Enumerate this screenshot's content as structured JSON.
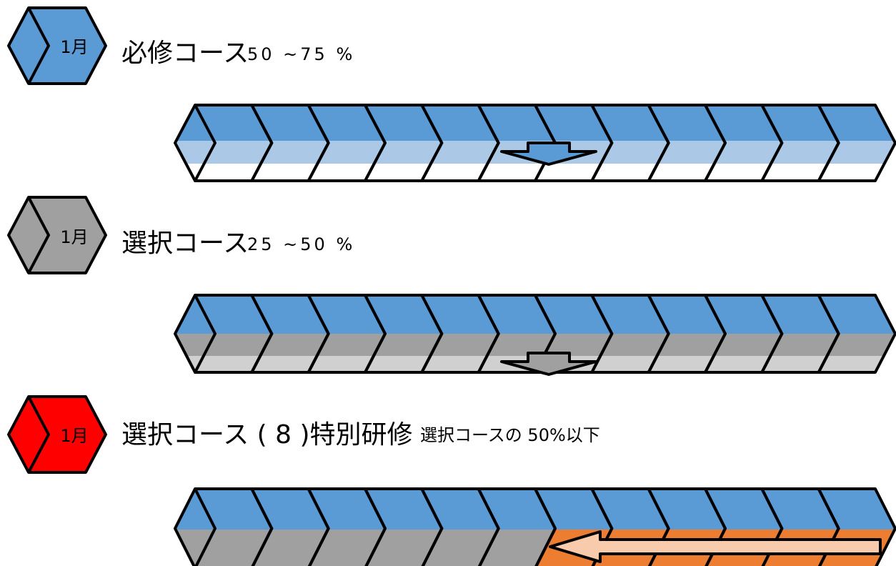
{
  "colors": {
    "blue": "#5b9bd5",
    "light_blue": "#abc9e7",
    "gray": "#a0a0a0",
    "light_gray": "#d0d0d0",
    "red": "#ff0000",
    "orange": "#ed7d31",
    "light_orange": "#f8cbad",
    "outline": "#000000",
    "white": "#ffffff"
  },
  "sections": [
    {
      "id": "required",
      "icon_color": "#5b9bd5",
      "month_label": "1月",
      "title": "必修コース",
      "percent": "50 ~75 %",
      "note": "",
      "bar": {
        "top": "blue",
        "middle": "light_blue",
        "bottom": "white",
        "highlight": "none"
      },
      "arrow": "down-blue"
    },
    {
      "id": "elective",
      "icon_color": "#a0a0a0",
      "month_label": "1月",
      "title": "選択コース",
      "percent": "25 ~50 %",
      "note": "",
      "bar": {
        "top": "blue",
        "middle": "gray",
        "bottom": "light_gray",
        "highlight": "none"
      },
      "arrow": "down-gray"
    },
    {
      "id": "special",
      "icon_color": "#ff0000",
      "month_label": "1月",
      "title": "選択コース ( 8 )特別研修",
      "percent": "",
      "note": "選択コースの 50%以下",
      "bar": {
        "top": "blue",
        "middle": "gray",
        "bottom": "gray",
        "highlight": "orange-from-7"
      },
      "arrow": "left-orange"
    }
  ]
}
